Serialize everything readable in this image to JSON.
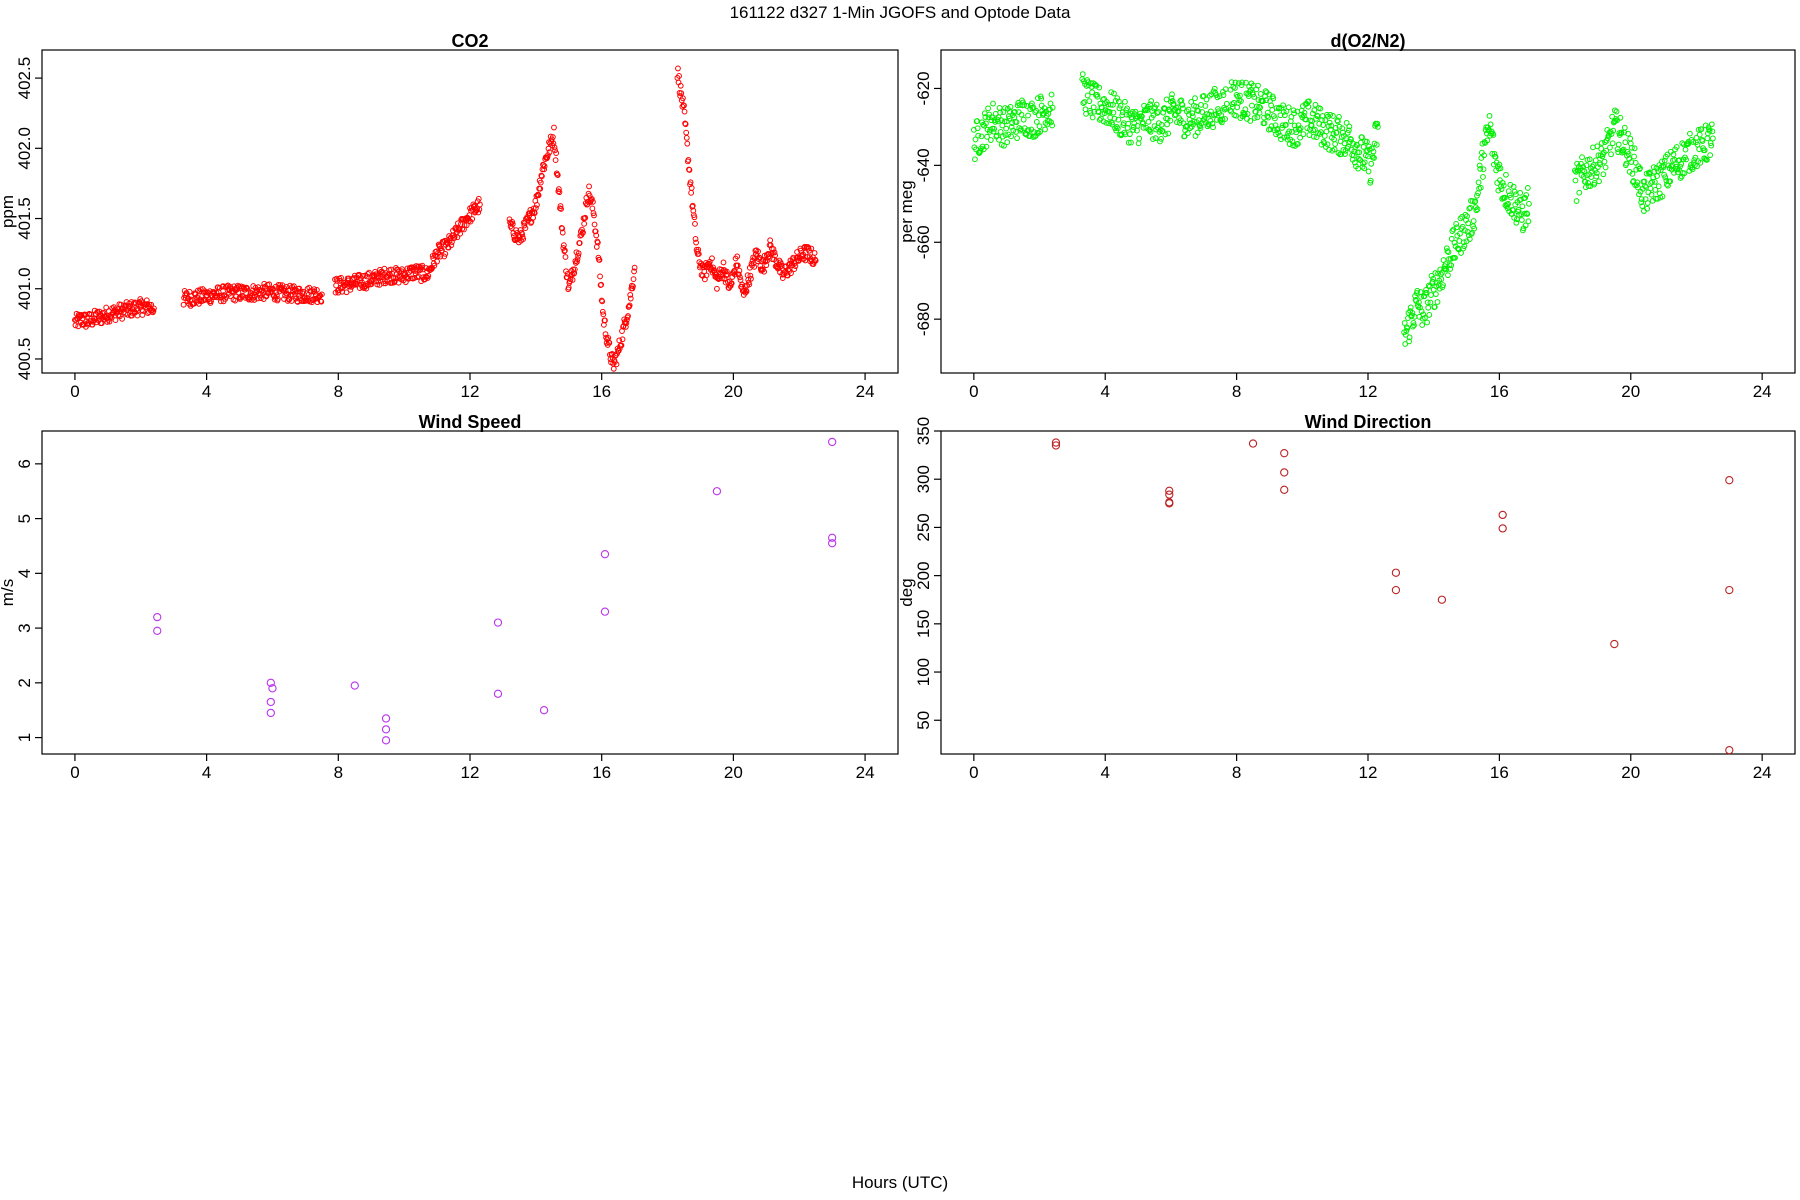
{
  "figure": {
    "title": "161122   d327   1-Min  JGOFS and Optode Data",
    "xlabel": "Hours (UTC)"
  },
  "chart_data": [
    {
      "id": "co2",
      "type": "scatter",
      "title": "CO2",
      "ylabel": "ppm",
      "xlim": [
        -1,
        25
      ],
      "ylim": [
        400.4,
        402.7
      ],
      "xticks": [
        0,
        4,
        8,
        12,
        16,
        20,
        24
      ],
      "yticks": [
        400.5,
        401.0,
        401.5,
        402.0,
        402.5
      ],
      "ytick_labels": [
        "400.5",
        "401.0",
        "401.5",
        "402.0",
        "402.5"
      ],
      "grid": false,
      "marker": "open-circle-small",
      "color": "#ff0000",
      "segments": [
        {
          "x": [
            0.0,
            0.2,
            0.4,
            0.6,
            0.8,
            1.0,
            1.2,
            1.4,
            1.6,
            1.8,
            2.0,
            2.2,
            2.4
          ],
          "y": [
            400.76,
            400.78,
            400.77,
            400.79,
            400.8,
            400.82,
            400.83,
            400.84,
            400.85,
            400.86,
            400.87,
            400.87,
            400.86
          ]
        },
        {
          "x": [
            3.3,
            3.8,
            4.3,
            4.8,
            5.3,
            5.8,
            6.3,
            6.8,
            7.3,
            7.5
          ],
          "y": [
            400.93,
            400.94,
            400.96,
            400.97,
            400.97,
            400.98,
            400.97,
            400.96,
            400.96,
            400.96
          ]
        },
        {
          "x": [
            7.9,
            8.3,
            8.7,
            9.1,
            9.5,
            9.9,
            10.3,
            10.7,
            11.0,
            11.3,
            11.6,
            11.9,
            12.1,
            12.3
          ],
          "y": [
            401.02,
            401.03,
            401.05,
            401.07,
            401.1,
            401.09,
            401.12,
            401.1,
            401.25,
            401.3,
            401.4,
            401.5,
            401.55,
            401.6
          ]
        },
        {
          "x": [
            13.2,
            13.5,
            13.8,
            14.0,
            14.2,
            14.4,
            14.55,
            14.7,
            14.85,
            15.0,
            15.2,
            15.4,
            15.6,
            15.75,
            15.9,
            16.05,
            16.2,
            16.35,
            16.5,
            16.7,
            16.85,
            17.0
          ],
          "y": [
            401.45,
            401.35,
            401.5,
            401.6,
            401.85,
            402.0,
            402.1,
            401.7,
            401.3,
            401.0,
            401.2,
            401.4,
            401.7,
            401.55,
            401.25,
            400.8,
            400.6,
            400.45,
            400.55,
            400.75,
            400.9,
            401.15
          ]
        },
        {
          "x": [
            18.3,
            18.4,
            18.5,
            18.6,
            18.7,
            18.9,
            19.1,
            19.3,
            19.5,
            19.7,
            19.9,
            20.1,
            20.3,
            20.5,
            20.7,
            20.9,
            21.1,
            21.3,
            21.5,
            21.7,
            21.9,
            22.1,
            22.3,
            22.5
          ],
          "y": [
            402.55,
            402.4,
            402.25,
            402.0,
            401.75,
            401.25,
            401.1,
            401.2,
            401.05,
            401.15,
            401.0,
            401.2,
            400.95,
            401.1,
            401.25,
            401.15,
            401.3,
            401.2,
            401.1,
            401.15,
            401.2,
            401.25,
            401.25,
            401.2
          ]
        }
      ]
    },
    {
      "id": "o2n2",
      "type": "scatter",
      "title": "d(O2/N2)",
      "ylabel": "per meg",
      "xlim": [
        -1,
        25
      ],
      "ylim": [
        -694,
        -610
      ],
      "xticks": [
        0,
        4,
        8,
        12,
        16,
        20,
        24
      ],
      "yticks": [
        -620,
        -640,
        -660,
        -680
      ],
      "ytick_labels": [
        "-620",
        "-640",
        "-660",
        "-680"
      ],
      "grid": false,
      "marker": "open-circle-small",
      "color": "#00ee00",
      "segments": [
        {
          "x": [
            0.0,
            0.3,
            0.6,
            0.9,
            1.2,
            1.5,
            1.8,
            2.1,
            2.4
          ],
          "y": [
            -634,
            -631,
            -628,
            -630,
            -629,
            -627,
            -628,
            -626,
            -625
          ]
        },
        {
          "x": [
            3.3,
            3.7,
            4.1,
            4.5,
            4.9,
            5.3,
            5.7,
            6.1,
            6.5,
            6.9,
            7.3,
            7.7
          ],
          "y": [
            -621,
            -624,
            -625,
            -628,
            -630,
            -628,
            -629,
            -626,
            -628,
            -627,
            -625,
            -624
          ]
        },
        {
          "x": [
            7.8,
            8.2,
            8.6,
            9.0,
            9.4,
            9.8,
            10.2,
            10.6,
            11.0,
            11.4,
            11.8,
            12.1,
            12.3
          ],
          "y": [
            -622,
            -623,
            -624,
            -626,
            -629,
            -630,
            -628,
            -630,
            -632,
            -633,
            -637,
            -640,
            -630
          ]
        },
        {
          "x": [
            13.1,
            13.3,
            13.5,
            13.7,
            13.9,
            14.1,
            14.3,
            14.5,
            14.7,
            14.9,
            15.1,
            15.3,
            15.5,
            15.7,
            15.9,
            16.1,
            16.3,
            16.5,
            16.7,
            16.9
          ],
          "y": [
            -685,
            -680,
            -676,
            -678,
            -674,
            -671,
            -667,
            -663,
            -660,
            -657,
            -655,
            -650,
            -638,
            -630,
            -640,
            -645,
            -648,
            -650,
            -653,
            -650
          ]
        },
        {
          "x": [
            18.3,
            18.6,
            18.9,
            19.2,
            19.5,
            19.8,
            20.1,
            20.4,
            20.7,
            21.0,
            21.3,
            21.6,
            21.9,
            22.2,
            22.5
          ],
          "y": [
            -645,
            -642,
            -640,
            -638,
            -630,
            -634,
            -640,
            -648,
            -645,
            -643,
            -640,
            -638,
            -636,
            -635,
            -633
          ]
        }
      ]
    },
    {
      "id": "wind_speed",
      "type": "scatter",
      "title": "Wind Speed",
      "ylabel": "m/s",
      "xlim": [
        -1,
        25
      ],
      "ylim": [
        0.7,
        6.6
      ],
      "xticks": [
        0,
        4,
        8,
        12,
        16,
        20,
        24
      ],
      "yticks": [
        1,
        2,
        3,
        4,
        5,
        6
      ],
      "ytick_labels": [
        "1",
        "2",
        "3",
        "4",
        "5",
        "6"
      ],
      "grid": false,
      "marker": "open-circle",
      "color": "#bb33ee",
      "x": [
        2.5,
        2.5,
        5.95,
        6.0,
        5.95,
        5.95,
        8.5,
        9.45,
        9.45,
        9.45,
        12.85,
        12.85,
        14.25,
        16.1,
        16.1,
        19.5,
        23.0,
        23.0,
        23.0
      ],
      "y": [
        3.2,
        2.95,
        2.0,
        1.9,
        1.65,
        1.45,
        1.95,
        1.35,
        1.15,
        0.95,
        3.1,
        1.8,
        1.5,
        4.35,
        3.3,
        5.5,
        6.4,
        4.65,
        4.55
      ]
    },
    {
      "id": "wind_direction",
      "type": "scatter",
      "title": "Wind Direction",
      "ylabel": "deg",
      "xlim": [
        -1,
        25
      ],
      "ylim": [
        15,
        350
      ],
      "xticks": [
        0,
        4,
        8,
        12,
        16,
        20,
        24
      ],
      "yticks": [
        50,
        100,
        150,
        200,
        250,
        300,
        350
      ],
      "ytick_labels": [
        "50",
        "100",
        "150",
        "200",
        "250",
        "300",
        "350"
      ],
      "grid": false,
      "marker": "open-circle",
      "color": "#bb2222",
      "x": [
        2.5,
        2.5,
        5.95,
        5.95,
        5.95,
        5.95,
        8.5,
        9.45,
        9.45,
        9.45,
        12.85,
        12.85,
        14.25,
        16.1,
        16.1,
        19.5,
        23.0,
        23.0,
        23.0
      ],
      "y": [
        338,
        335,
        288,
        284,
        276,
        275,
        337,
        327,
        307,
        289,
        203,
        185,
        175,
        263,
        249,
        129,
        299,
        185,
        19
      ]
    }
  ]
}
